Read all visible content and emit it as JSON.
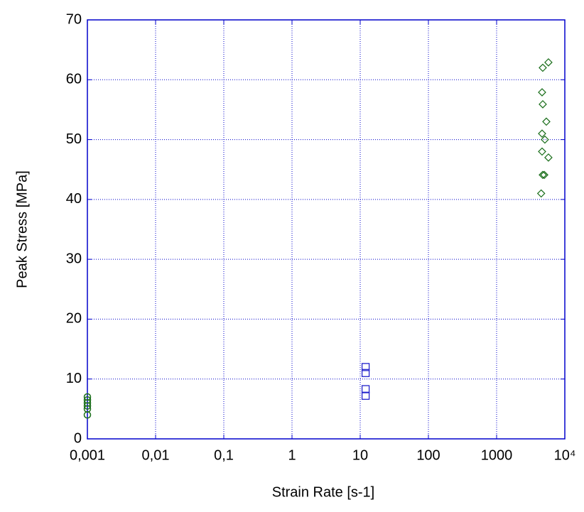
{
  "chart_data": {
    "type": "scatter",
    "x_label": "Strain Rate [s-1]",
    "y_label": "Peak Stress [MPa]",
    "xscale": "log",
    "xlim": [
      0.001,
      10000
    ],
    "xticks": [
      {
        "value": 0.001,
        "label": "0,001"
      },
      {
        "value": 0.01,
        "label": "0,01"
      },
      {
        "value": 0.1,
        "label": "0,1"
      },
      1,
      10,
      100,
      1000,
      {
        "value": 10000,
        "label": "10⁴"
      }
    ],
    "ylim": [
      0,
      70
    ],
    "yticks": [
      0,
      10,
      20,
      30,
      40,
      50,
      60,
      70
    ],
    "grid": true,
    "frame_color": "#0000cc",
    "series": [
      {
        "marker": "circle",
        "color": "#1a6e1a",
        "x": [
          0.001,
          0.001,
          0.001,
          0.001,
          0.001,
          0.001
        ],
        "values": [
          4,
          5,
          5.5,
          6,
          6.5,
          7
        ]
      },
      {
        "marker": "square",
        "color": "#2222cc",
        "x": [
          12,
          12,
          12,
          12
        ],
        "values": [
          12,
          11,
          8.3,
          7.2
        ]
      },
      {
        "marker": "diamond",
        "color": "#1a6e1a",
        "x": [
          5750,
          4750,
          4640,
          4750,
          5360,
          4640,
          5100,
          4640,
          5750,
          4750,
          5000,
          4500
        ],
        "values": [
          62.9,
          62,
          57.9,
          55.9,
          53,
          51,
          50,
          48,
          47,
          44.1,
          44.1,
          41
        ]
      }
    ]
  }
}
